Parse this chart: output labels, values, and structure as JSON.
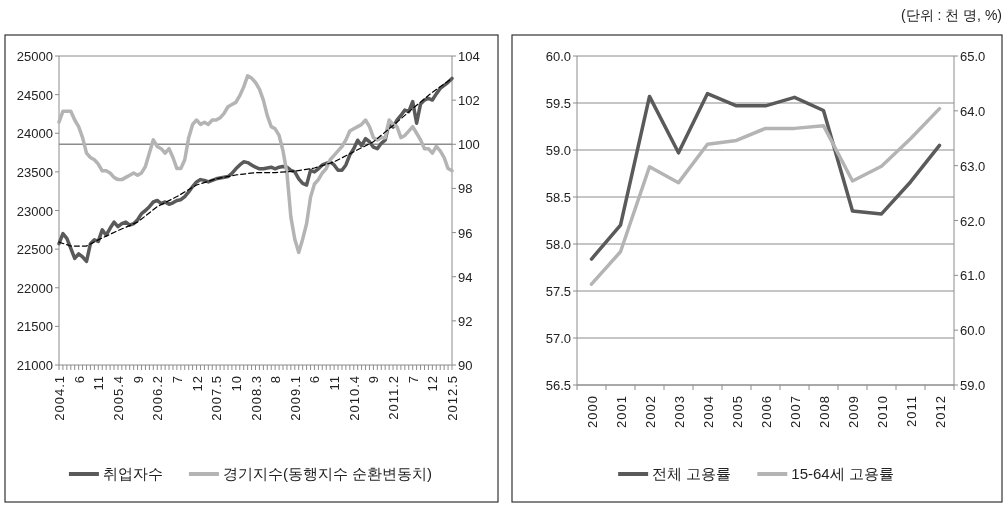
{
  "chart_data": [
    {
      "type": "line",
      "categories": [
        "2004.1",
        null,
        null,
        null,
        null,
        "6",
        null,
        null,
        null,
        null,
        "11",
        null,
        null,
        null,
        null,
        "2005.4",
        null,
        null,
        null,
        null,
        "9",
        null,
        null,
        null,
        null,
        "2006.2",
        null,
        null,
        null,
        null,
        "7",
        null,
        null,
        null,
        null,
        "12",
        null,
        null,
        null,
        null,
        "2007.5",
        null,
        null,
        null,
        null,
        "10",
        null,
        null,
        null,
        null,
        "2008.3",
        null,
        null,
        null,
        null,
        "8",
        null,
        null,
        null,
        null,
        "2009.1",
        null,
        null,
        null,
        null,
        "6",
        null,
        null,
        null,
        null,
        "11",
        null,
        null,
        null,
        null,
        "2010.4",
        null,
        null,
        null,
        null,
        "9",
        null,
        null,
        null,
        null,
        "2011.2",
        null,
        null,
        null,
        null,
        "7",
        null,
        null,
        null,
        null,
        "12",
        null,
        null,
        null,
        null,
        "2012.5"
      ],
      "series": [
        {
          "name": "취업자수",
          "color": "#5a5a5a",
          "values": [
            22570,
            22700,
            22640,
            22510,
            22380,
            22440,
            22400,
            22340,
            22570,
            22620,
            22600,
            22750,
            22680,
            22770,
            22850,
            22790,
            22830,
            22850,
            22810,
            22830,
            22880,
            22960,
            23000,
            23050,
            23110,
            23130,
            23090,
            23110,
            23080,
            23100,
            23130,
            23140,
            23180,
            23240,
            23310,
            23370,
            23400,
            23390,
            23370,
            23390,
            23410,
            23420,
            23430,
            23440,
            23480,
            23540,
            23590,
            23630,
            23620,
            23590,
            23560,
            23540,
            23540,
            23550,
            23560,
            23540,
            23560,
            23570,
            23560,
            23520,
            23500,
            23410,
            23350,
            23330,
            23520,
            23500,
            23540,
            23590,
            23610,
            23630,
            23590,
            23520,
            23520,
            23590,
            23720,
            23800,
            23910,
            23840,
            23930,
            23890,
            23820,
            23800,
            23870,
            23910,
            24130,
            24080,
            24170,
            24230,
            24300,
            24280,
            24410,
            24130,
            24380,
            24430,
            24450,
            24430,
            24510,
            24580,
            24620,
            24660,
            24710
          ]
        },
        {
          "name": "경기지수(동행지수 순환변동치)",
          "color": "#b4b4b4",
          "axis": "y2",
          "values": [
            101.0,
            101.5,
            101.5,
            101.5,
            101.1,
            100.8,
            100.3,
            99.6,
            99.4,
            99.3,
            99.1,
            98.8,
            98.8,
            98.7,
            98.5,
            98.4,
            98.4,
            98.5,
            98.6,
            98.7,
            98.6,
            98.7,
            99.0,
            99.6,
            100.2,
            99.9,
            99.8,
            99.6,
            99.8,
            99.4,
            98.9,
            98.9,
            99.3,
            100.3,
            100.9,
            101.1,
            100.9,
            101.0,
            100.9,
            101.1,
            101.1,
            101.2,
            101.4,
            101.7,
            101.8,
            101.9,
            102.2,
            102.6,
            103.1,
            103.0,
            102.8,
            102.5,
            102.0,
            101.3,
            100.8,
            100.7,
            100.4,
            99.7,
            98.7,
            96.7,
            95.7,
            95.1,
            95.7,
            96.4,
            97.6,
            98.2,
            98.4,
            98.7,
            98.9,
            99.3,
            99.5,
            99.7,
            99.9,
            100.2,
            100.6,
            100.7,
            100.8,
            100.9,
            101.1,
            100.8,
            100.3,
            100.2,
            100.3,
            100.3,
            101.1,
            100.9,
            100.8,
            100.3,
            100.4,
            100.6,
            100.8,
            100.5,
            100.2,
            99.8,
            99.8,
            99.6,
            99.9,
            99.7,
            99.4,
            98.9,
            98.8
          ]
        },
        {
          "color": "#000000",
          "line_style": "dashed",
          "values": [
            22590,
            null,
            null,
            22540,
            null,
            null,
            null,
            22540,
            null,
            null,
            22620,
            null,
            null,
            null,
            null,
            22740,
            null,
            null,
            null,
            null,
            22850,
            null,
            null,
            null,
            null,
            23050,
            null,
            null,
            null,
            null,
            23180,
            null,
            null,
            null,
            null,
            23330,
            null,
            null,
            null,
            null,
            23410,
            null,
            null,
            null,
            null,
            23460,
            null,
            null,
            null,
            null,
            23490,
            null,
            null,
            null,
            null,
            23490,
            null,
            null,
            null,
            null,
            23510,
            null,
            null,
            null,
            null,
            23550,
            null,
            null,
            null,
            null,
            23630,
            null,
            null,
            null,
            null,
            23760,
            null,
            null,
            null,
            null,
            23890,
            null,
            null,
            null,
            null,
            24100,
            null,
            null,
            null,
            null,
            24320,
            null,
            null,
            null,
            null,
            24530,
            null,
            null,
            null,
            null,
            24710
          ]
        }
      ],
      "ylim": [
        21000,
        25000
      ],
      "yticks": [
        21000,
        21500,
        22000,
        22500,
        23000,
        23500,
        24000,
        24500,
        25000
      ],
      "y2lim": [
        90,
        104
      ],
      "y2ticks": [
        90,
        92,
        94,
        96,
        98,
        100,
        102,
        104
      ],
      "ref_lines": [
        {
          "axis": "y2",
          "value": 100,
          "color": "#8c8c8c"
        }
      ],
      "legend": "bottom"
    },
    {
      "type": "line",
      "categories": [
        "2000",
        "2001",
        "2002",
        "2003",
        "2004",
        "2005",
        "2006",
        "2007",
        "2008",
        "2009",
        "2010",
        "2011",
        "2012"
      ],
      "series": [
        {
          "name": "전체 고용률",
          "color": "#5a5a5a",
          "values": [
            57.84,
            58.2,
            59.57,
            58.97,
            59.6,
            59.47,
            59.47,
            59.56,
            59.42,
            58.35,
            58.32,
            58.66,
            59.05
          ]
        },
        {
          "name": "15-64세 고용률",
          "color": "#b4b4b4",
          "axis": "y2",
          "values": [
            60.84,
            61.43,
            62.98,
            62.69,
            63.39,
            63.46,
            63.68,
            63.68,
            63.73,
            62.72,
            62.99,
            63.49,
            64.04
          ]
        }
      ],
      "ylim": [
        56.5,
        60.0
      ],
      "yticks": [
        {
          "value": 56.5,
          "label": "56.5"
        },
        {
          "value": 57,
          "label": "57.0"
        },
        {
          "value": 57.5,
          "label": "57.5"
        },
        {
          "value": 58,
          "label": "58.0"
        },
        {
          "value": 58.5,
          "label": "58.5"
        },
        {
          "value": 59,
          "label": "59.0"
        },
        {
          "value": 59.5,
          "label": "59.5"
        },
        {
          "value": 60,
          "label": "60.0"
        }
      ],
      "y2lim": [
        59,
        65
      ],
      "y2ticks": [
        {
          "value": 59,
          "label": "59.0"
        },
        {
          "value": 60,
          "label": "60.0"
        },
        {
          "value": 61,
          "label": "61.0"
        },
        {
          "value": 62,
          "label": "62.0"
        },
        {
          "value": 63,
          "label": "63.0"
        },
        {
          "value": 64,
          "label": "64.0"
        },
        {
          "value": 65,
          "label": "65.0"
        }
      ],
      "grid": "y",
      "legend": "bottom",
      "annotations": [
        "(단위 : 천 명, %)"
      ]
    }
  ]
}
